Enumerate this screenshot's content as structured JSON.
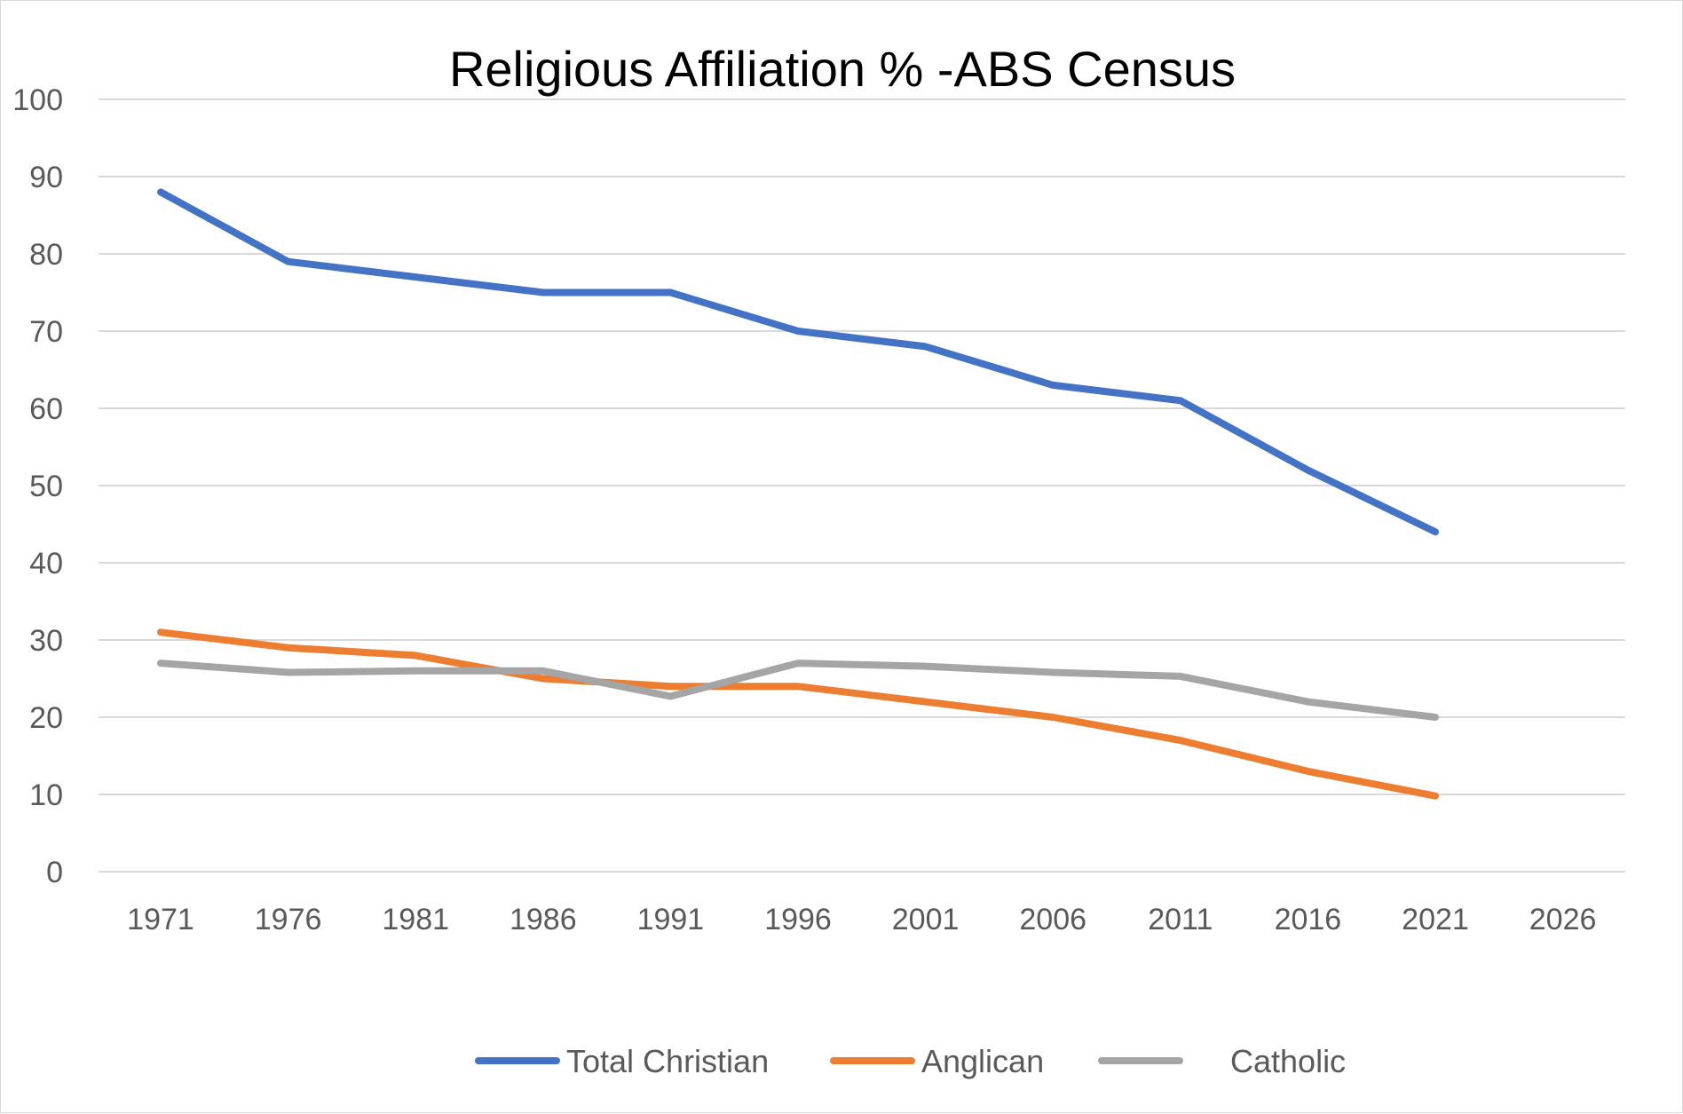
{
  "chart_data": {
    "type": "line",
    "title": "Religious Affiliation % -ABS Census",
    "xlabel": "",
    "ylabel": "",
    "categories": [
      "1971",
      "1976",
      "1981",
      "1986",
      "1991",
      "1996",
      "2001",
      "2006",
      "2011",
      "2016",
      "2021",
      "2026"
    ],
    "ylim": [
      0,
      100
    ],
    "yticks": [
      "0",
      "10",
      "20",
      "30",
      "40",
      "50",
      "60",
      "70",
      "80",
      "90",
      "100"
    ],
    "grid": true,
    "legend_position": "bottom",
    "series": [
      {
        "name": "Total Christian",
        "color": "#4472c4",
        "values": [
          88,
          79,
          77,
          75,
          75,
          70,
          68,
          63,
          61,
          52,
          44,
          null
        ]
      },
      {
        "name": "Anglican",
        "color": "#ed7d31",
        "values": [
          31,
          29,
          28,
          25,
          24,
          24,
          22,
          20,
          17,
          13,
          9.8,
          null
        ]
      },
      {
        "name": "Catholic",
        "color": "#a5a5a5",
        "values": [
          27,
          25.8,
          26,
          26,
          22.7,
          27,
          26.6,
          25.8,
          25.3,
          22,
          20,
          null
        ]
      }
    ]
  }
}
